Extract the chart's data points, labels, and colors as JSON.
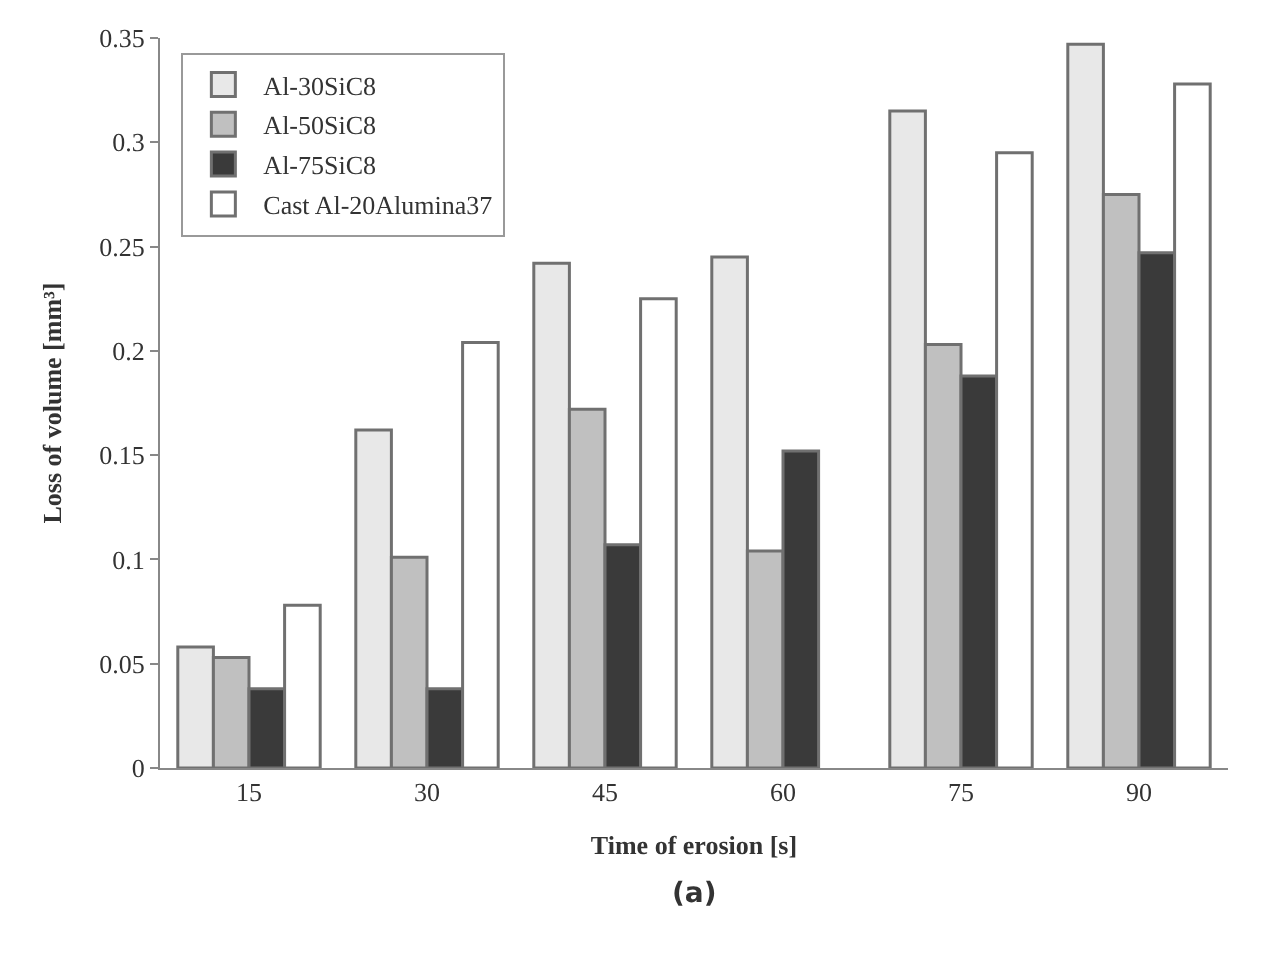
{
  "chart_data": {
    "type": "bar",
    "xlabel": "Time of erosion [s]",
    "ylabel": "Loss of volume [mm³]",
    "categories": [
      "15",
      "30",
      "45",
      "60",
      "75",
      "90"
    ],
    "series": [
      {
        "name": "Al-30SiC8",
        "color": "#e8e8e8",
        "values": [
          0.058,
          0.162,
          0.242,
          0.245,
          0.315,
          0.347
        ]
      },
      {
        "name": "Al-50SiC8",
        "color": "#c0c0c0",
        "values": [
          0.053,
          0.101,
          0.172,
          0.104,
          0.203,
          0.275
        ]
      },
      {
        "name": "Al-75SiC8",
        "color": "#3a3a3a",
        "values": [
          0.038,
          0.038,
          0.107,
          0.152,
          0.188,
          0.247
        ]
      },
      {
        "name": "Cast Al-20Alumina37",
        "color": "#ffffff",
        "values": [
          0.078,
          0.204,
          0.225,
          null,
          0.295,
          0.328
        ]
      }
    ],
    "ylim": [
      0,
      0.35
    ],
    "yticks": [
      {
        "value": 0,
        "label": "0"
      },
      0.05,
      0.1,
      0.15,
      0.2,
      0.25,
      0.3,
      0.35
    ],
    "legend": "top left",
    "annotations": [
      "(a)"
    ]
  }
}
